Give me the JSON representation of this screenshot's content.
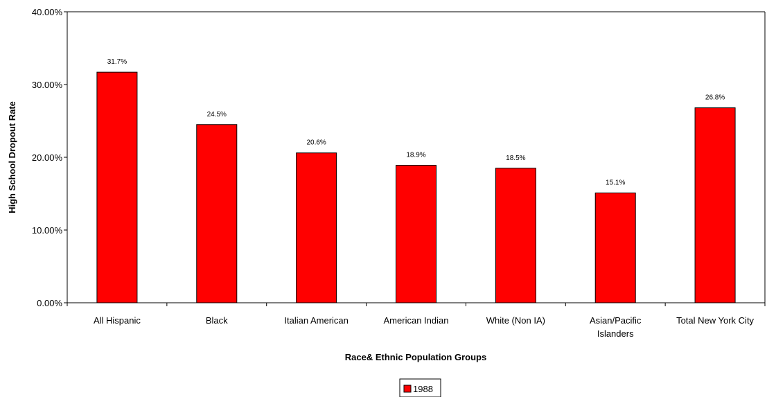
{
  "chart_data": {
    "type": "bar",
    "title": "",
    "xlabel": "Race& Ethnic Population Groups",
    "ylabel": "High School Dropout Rate",
    "categories": [
      [
        "All Hispanic"
      ],
      [
        "Black"
      ],
      [
        "Italian American"
      ],
      [
        "American Indian"
      ],
      [
        "White (Non IA)"
      ],
      [
        "Asian/Pacific",
        "Islanders"
      ],
      [
        "Total New York City"
      ]
    ],
    "series": [
      {
        "name": "1988",
        "values": [
          31.7,
          24.5,
          20.6,
          18.9,
          18.5,
          15.1,
          26.8
        ],
        "data_labels": [
          "31.7%",
          "24.5%",
          "20.6%",
          "18.9%",
          "18.5%",
          "15.1%",
          "26.8%"
        ],
        "color": "#ff0000"
      }
    ],
    "ylim": [
      0,
      40
    ],
    "yticks": [
      0,
      10,
      20,
      30,
      40
    ],
    "ytick_labels": [
      "0.00%",
      "10.00%",
      "20.00%",
      "30.00%",
      "40.00%"
    ],
    "grid": false,
    "legend_position": "bottom"
  }
}
